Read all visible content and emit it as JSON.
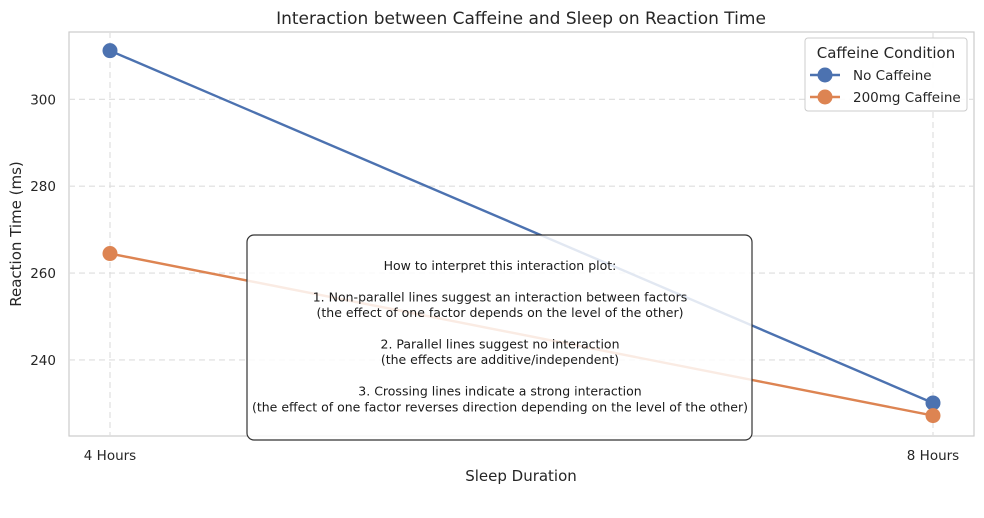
{
  "chart_data": {
    "type": "line",
    "title": "Interaction between Caffeine and Sleep on Reaction Time",
    "xlabel": "Sleep Duration",
    "ylabel": "Reaction Time (ms)",
    "categories": [
      "4 Hours",
      "8 Hours"
    ],
    "ylim": [
      222.5,
      315.5
    ],
    "yticks": [
      240,
      260,
      280,
      300
    ],
    "grid": true,
    "legend": {
      "title": "Caffeine Condition",
      "placement": "top-right"
    },
    "series": [
      {
        "name": "No Caffeine",
        "values": [
          311.2,
          230.1
        ],
        "color": "#4c72b0"
      },
      {
        "name": "200mg Caffeine",
        "values": [
          264.5,
          227.2
        ],
        "color": "#dd8452"
      }
    ],
    "annotation": {
      "lines": [
        "How to interpret this interaction plot:",
        "",
        "1. Non-parallel lines suggest an interaction between factors",
        "   (the effect of one factor depends on the level of the other)",
        "",
        "2. Parallel lines suggest no interaction",
        "   (the effects are additive/independent)",
        "",
        "3. Crossing lines indicate a strong interaction",
        "   (the effect of one factor reverses direction depending on the level of the other)"
      ]
    }
  }
}
